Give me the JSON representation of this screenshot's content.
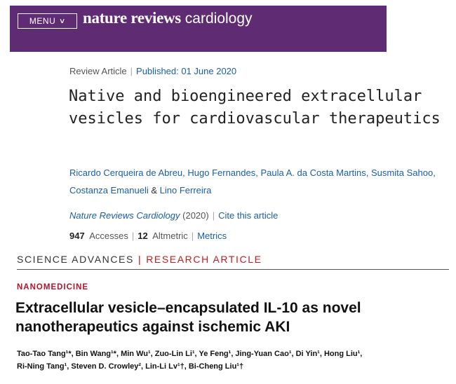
{
  "header": {
    "menu_label": "MENU",
    "brand_bold": "nature reviews",
    "brand_light": " cardiology"
  },
  "article": {
    "type": "Review Article",
    "published": "Published: 01 June 2020",
    "title": "Native and bioengineered extracellular vesicles for cardiovascular therapeutics",
    "authors": [
      "Ricardo Cerqueira de Abreu",
      "Hugo Fernandes",
      "Paula A. da Costa Martins",
      "Susmita Sahoo",
      "Costanza Emanueli",
      "Lino Ferreira"
    ],
    "journal": "Nature Reviews Cardiology",
    "year": "(2020)",
    "cite_label": "Cite this article",
    "accesses_count": "947",
    "accesses_label": "Accesses",
    "altmetric_count": "12",
    "altmetric_label": "Altmetric",
    "metrics_label": "Metrics"
  },
  "science_advances": {
    "journal": "SCIENCE ADVANCES",
    "section_type": "RESEARCH ARTICLE",
    "category": "NANOMEDICINE",
    "title": "Extracellular vesicle–encapsulated IL-10 as novel nanotherapeutics against ischemic AKI",
    "authors_line1": "Tao-Tao Tang¹*, Bin Wang¹*, Min Wu¹, Zuo-Lin Li¹, Ye Feng¹, Jing-Yuan Cao¹, Di Yin¹, Hong Liu¹,",
    "authors_line2": "Ri-Ning Tang¹, Steven D. Crowley², Lin-Li Lv¹†, Bi-Cheng Liu¹†"
  },
  "colors": {
    "header_bg": "#5f2b73",
    "link": "#1a5fa8",
    "accent_red": "#c41c1c"
  }
}
